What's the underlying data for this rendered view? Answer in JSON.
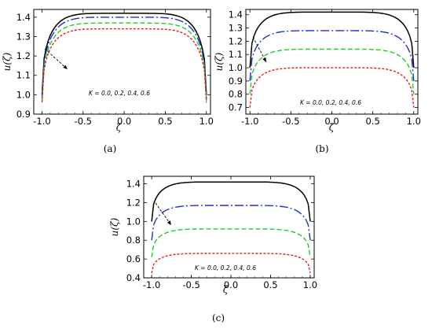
{
  "colors": {
    "K=0.0": "#000000",
    "K=0.2": "#1f2fd6",
    "K=0.4": "#22cc22",
    "K=0.6": "#e02020"
  },
  "chart_data": [
    {
      "panel": "(a)",
      "type": "line",
      "xlabel": "ζ",
      "ylabel": "u(ζ)",
      "xlim": [
        -1.1,
        1.05
      ],
      "ylim": [
        0.9,
        1.44
      ],
      "xticks": [
        -1.0,
        -0.5,
        0.0,
        0.5,
        1.0
      ],
      "yticks": [
        0.9,
        1.0,
        1.1,
        1.2,
        1.3,
        1.4
      ],
      "xticklabels": [
        "-1.0",
        "-0.5",
        "0.0",
        "0.5",
        "1.0"
      ],
      "yticklabels": [
        "0.9",
        "1.0",
        "1.1",
        "1.2",
        "1.3",
        "1.4"
      ],
      "annotation": "K = 0.0, 0.2, 0.4, 0.6",
      "series": [
        {
          "key": "K=0.0",
          "dash": "solid",
          "edge": 1.0,
          "peak": 1.42
        },
        {
          "key": "K=0.2",
          "dash": "longdash",
          "edge": 0.98,
          "peak": 1.4
        },
        {
          "key": "K=0.4",
          "dash": "dash",
          "edge": 0.97,
          "peak": 1.37
        },
        {
          "key": "K=0.6",
          "dash": "short",
          "edge": 0.96,
          "peak": 1.34
        }
      ]
    },
    {
      "panel": "(b)",
      "type": "line",
      "xlabel": "ζ",
      "ylabel": "u(ζ)",
      "xlim": [
        -1.05,
        1.05
      ],
      "ylim": [
        0.65,
        1.44
      ],
      "xticks": [
        -1.0,
        -0.5,
        0.0,
        0.5,
        1.0
      ],
      "yticks": [
        0.7,
        0.8,
        0.9,
        1.0,
        1.1,
        1.2,
        1.3,
        1.4
      ],
      "xticklabels": [
        "-1.0",
        "-0.5",
        "0.0",
        "0.5",
        "1.0"
      ],
      "yticklabels": [
        "0.7",
        "0.8",
        "0.9",
        "1.0",
        "1.1",
        "1.2",
        "1.3",
        "1.4"
      ],
      "annotation": "K = 0.0, 0.2, 0.4, 0.6",
      "series": [
        {
          "key": "K=0.0",
          "dash": "solid",
          "edge": 1.0,
          "peak": 1.42
        },
        {
          "key": "K=0.2",
          "dash": "longdash",
          "edge": 0.9,
          "peak": 1.28
        },
        {
          "key": "K=0.4",
          "dash": "dash",
          "edge": 0.8,
          "peak": 1.14
        },
        {
          "key": "K=0.6",
          "dash": "short",
          "edge": 0.7,
          "peak": 1.0
        }
      ]
    },
    {
      "panel": "(c)",
      "type": "line",
      "xlabel": "ζ",
      "ylabel": "u(ζ)",
      "xlim": [
        -1.1,
        1.05
      ],
      "ylim": [
        0.4,
        1.48
      ],
      "xticks": [
        -1.0,
        -0.5,
        0.0,
        0.5,
        1.0
      ],
      "yticks": [
        0.4,
        0.6,
        0.8,
        1.0,
        1.2,
        1.4
      ],
      "xticklabels": [
        "-1.0",
        "-0.5",
        "0.0",
        "0.5",
        "1.0"
      ],
      "yticklabels": [
        "0.4",
        "0.6",
        "0.8",
        "1.0",
        "1.2",
        "1.4"
      ],
      "annotation": "K = 0.0, 0.2, 0.4, 0.6",
      "series": [
        {
          "key": "K=0.0",
          "dash": "solid",
          "edge": 1.0,
          "peak": 1.42
        },
        {
          "key": "K=0.2",
          "dash": "longdash",
          "edge": 0.8,
          "peak": 1.17
        },
        {
          "key": "K=0.4",
          "dash": "dash",
          "edge": 0.62,
          "peak": 0.92
        },
        {
          "key": "K=0.6",
          "dash": "short",
          "edge": 0.45,
          "peak": 0.66
        }
      ]
    }
  ]
}
